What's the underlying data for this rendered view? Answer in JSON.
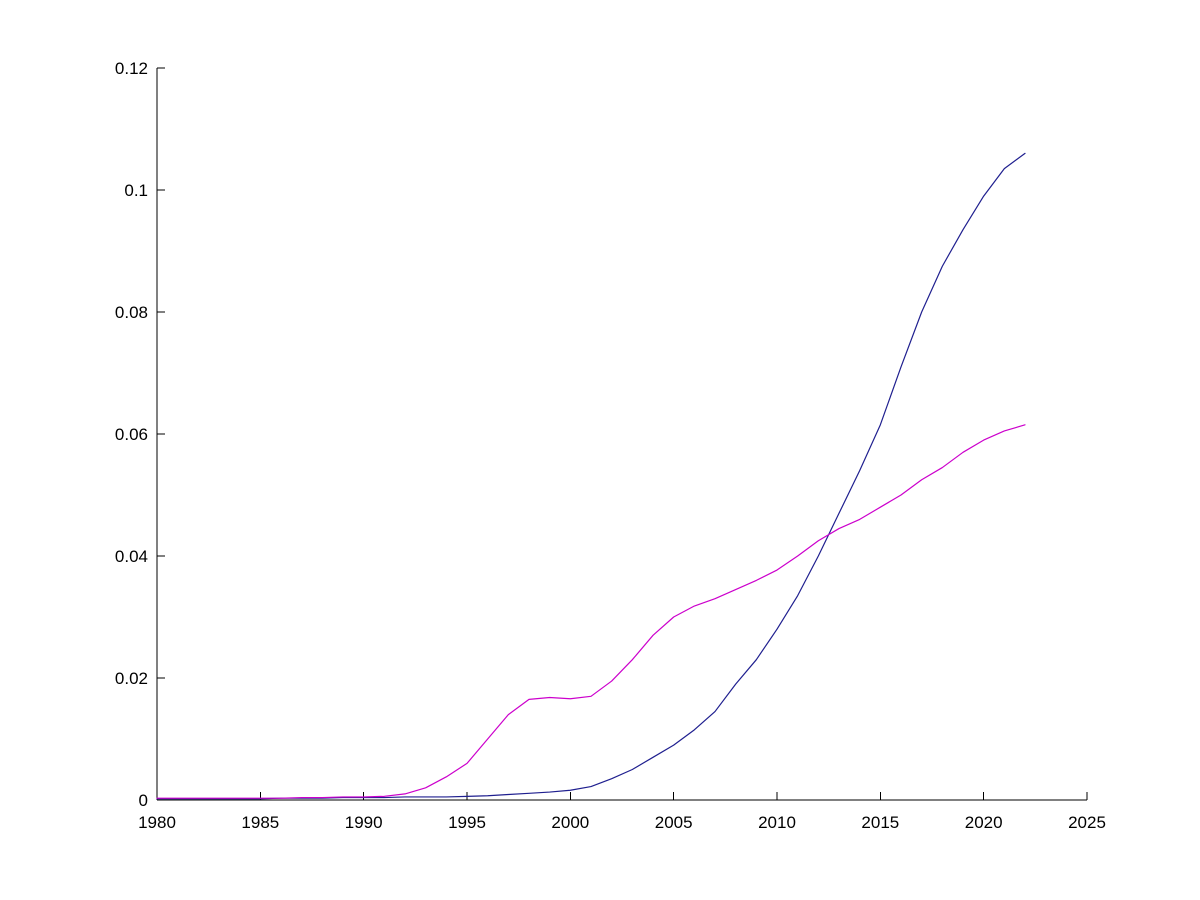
{
  "figure": {
    "background": "#ffffff",
    "axis_color": "#000000",
    "tick_label_color": "#000000"
  },
  "chart_data": {
    "type": "line",
    "title": "",
    "xlabel": "",
    "ylabel": "",
    "grid": false,
    "legend": null,
    "xlim": [
      1980,
      2025
    ],
    "ylim": [
      0,
      0.12
    ],
    "x_ticks": [
      1980,
      1985,
      1990,
      1995,
      2000,
      2005,
      2010,
      2015,
      2020,
      2025
    ],
    "x_tick_labels": [
      "1980",
      "1985",
      "1990",
      "1995",
      "2000",
      "2005",
      "2010",
      "2015",
      "2020",
      "2025"
    ],
    "y_ticks": [
      0,
      0.02,
      0.04,
      0.06,
      0.08,
      0.1,
      0.12
    ],
    "y_tick_labels": [
      "0",
      "0.02",
      "0.04",
      "0.06",
      "0.08",
      "0.1",
      "0.12"
    ],
    "x": [
      1980,
      1981,
      1982,
      1983,
      1984,
      1985,
      1986,
      1987,
      1988,
      1989,
      1990,
      1991,
      1992,
      1993,
      1994,
      1995,
      1996,
      1997,
      1998,
      1999,
      2000,
      2001,
      2002,
      2003,
      2004,
      2005,
      2006,
      2007,
      2008,
      2009,
      2010,
      2011,
      2012,
      2013,
      2014,
      2015,
      2016,
      2017,
      2018,
      2019,
      2020,
      2021,
      2022
    ],
    "series": [
      {
        "name": "dark-blue-line",
        "color": "#1f1f8f",
        "values": [
          0.0002,
          0.0002,
          0.0002,
          0.0002,
          0.0002,
          0.0002,
          0.0003,
          0.0003,
          0.0003,
          0.0004,
          0.0004,
          0.0004,
          0.0005,
          0.0005,
          0.0005,
          0.0006,
          0.0007,
          0.0009,
          0.0011,
          0.0013,
          0.0016,
          0.0022,
          0.0035,
          0.005,
          0.007,
          0.009,
          0.0115,
          0.0145,
          0.019,
          0.023,
          0.028,
          0.0335,
          0.04,
          0.047,
          0.054,
          0.0615,
          0.071,
          0.08,
          0.0875,
          0.0935,
          0.099,
          0.1035,
          0.106
        ]
      },
      {
        "name": "magenta-line",
        "color": "#cc00cc",
        "values": [
          0.0003,
          0.0003,
          0.0003,
          0.0003,
          0.0003,
          0.0003,
          0.0003,
          0.0004,
          0.0004,
          0.0005,
          0.0005,
          0.0006,
          0.001,
          0.002,
          0.0038,
          0.006,
          0.01,
          0.014,
          0.0165,
          0.0168,
          0.0166,
          0.017,
          0.0195,
          0.023,
          0.027,
          0.03,
          0.0318,
          0.033,
          0.0345,
          0.036,
          0.0377,
          0.04,
          0.0425,
          0.0445,
          0.046,
          0.048,
          0.05,
          0.0525,
          0.0545,
          0.057,
          0.059,
          0.0605,
          0.0615
        ]
      }
    ]
  }
}
